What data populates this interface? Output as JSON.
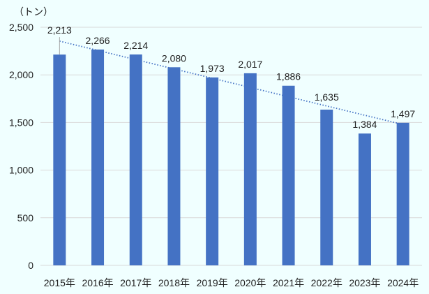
{
  "chart_data": {
    "type": "bar",
    "unit_label": "（トン）",
    "categories": [
      "2015年",
      "2016年",
      "2017年",
      "2018年",
      "2019年",
      "2020年",
      "2021年",
      "2022年",
      "2023年",
      "2024年"
    ],
    "values": [
      2213,
      2266,
      2214,
      2080,
      1973,
      2017,
      1886,
      1635,
      1384,
      1497
    ],
    "data_labels": [
      "2,213",
      "2,266",
      "2,214",
      "2,080",
      "1,973",
      "2,017",
      "1,886",
      "1,635",
      "1,384",
      "1,497"
    ],
    "ylim": [
      0,
      2500
    ],
    "yticks": [
      0,
      500,
      1000,
      1500,
      2000,
      2500
    ],
    "ytick_labels": [
      "0",
      "500",
      "1,000",
      "1,500",
      "2,000",
      "2,500"
    ],
    "grid": true,
    "trendline": "linear, dotted",
    "colors": {
      "bar": "#4472C4",
      "trend": "#4472C4",
      "grid": "#D9D9D9",
      "background": "#F0FFFF"
    }
  }
}
